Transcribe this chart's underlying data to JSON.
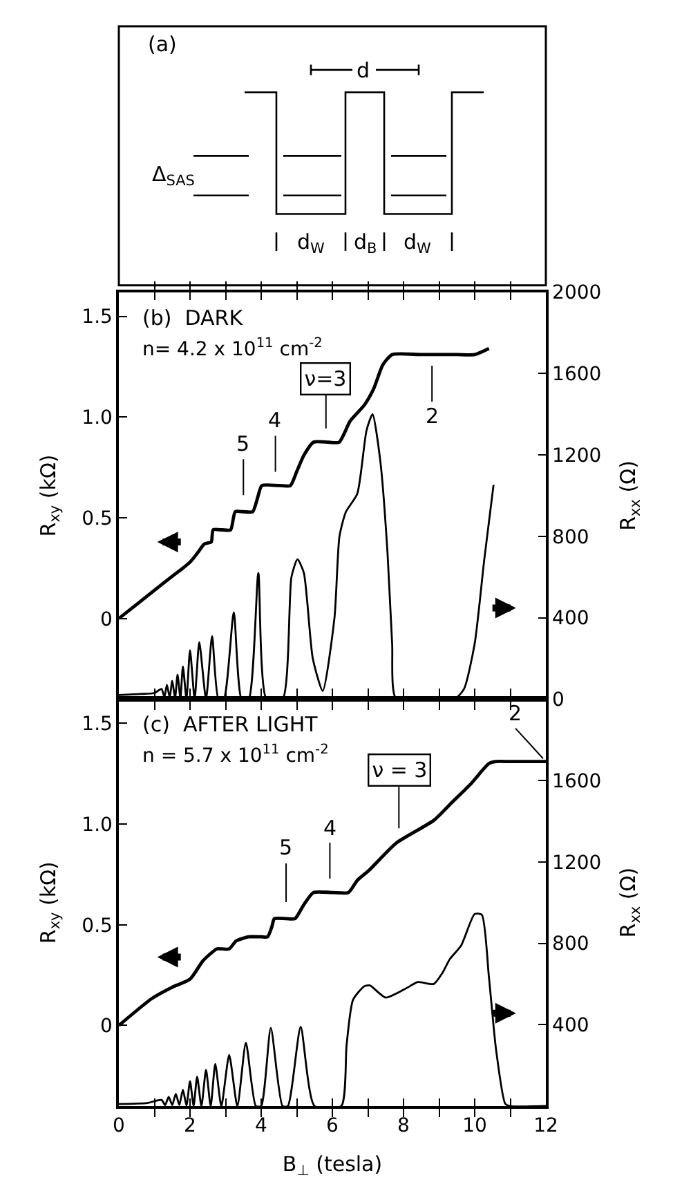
{
  "chart_data": [
    {
      "type": "other",
      "annotations": [
        "(a)",
        "d",
        "Δ$_{SAS}$",
        "d$_{W}$",
        "d$_{B}$",
        "d$_{W}$"
      ]
    },
    {
      "type": "line",
      "ylabel": "R$_{xy}$ (kΩ)",
      "y2label": "R$_{xx}$ (Ω)",
      "tick_labels": "y",
      "annotations": [
        "(b)  DARK",
        "n= 4.2 x 10$^{11}$ cm$^{-2}$",
        {
          "text": "5",
          "x": 3.5,
          "y": 0.53
        },
        {
          "text": "4",
          "x": 4.4,
          "y": 0.66
        },
        {
          "text": "ν=3",
          "x": 5.82,
          "y": 0.875
        },
        {
          "text": "2",
          "x": 8.8,
          "y": 1.31
        }
      ],
      "xlim": [
        0,
        12
      ],
      "xticks": [
        0,
        {
          "value": 1,
          "label": null
        },
        {
          "value": 2,
          "label": null
        },
        {
          "value": 3,
          "label": null
        },
        {
          "value": 4,
          "label": null
        },
        {
          "value": 5,
          "label": null
        },
        {
          "value": 6,
          "label": null
        },
        {
          "value": 7,
          "label": null
        },
        {
          "value": 8,
          "label": null
        },
        {
          "value": 9,
          "label": null
        },
        {
          "value": 10,
          "label": null
        },
        {
          "value": 11,
          "label": null
        },
        {
          "value": 12,
          "label": null
        }
      ],
      "ylim": [
        -0.4,
        1.62
      ],
      "yticks": [
        0,
        0.5,
        {
          "value": 1.0,
          "label": "1.0"
        },
        1.5
      ],
      "y2lim": [
        0,
        2000
      ],
      "y2ticks": [
        0,
        400,
        800,
        1200,
        1600,
        2000
      ],
      "series": [
        {
          "color": "#000000",
          "x": [
            0,
            0.5,
            1.0,
            1.5,
            1.8,
            2.0,
            2.1,
            2.23,
            2.4,
            2.5,
            2.6,
            2.65,
            2.9,
            3.14,
            3.27,
            3.5,
            3.76,
            3.9,
            4.02,
            4.5,
            4.82,
            5.0,
            5.2,
            5.47,
            5.9,
            6.19,
            6.5,
            6.9,
            7.16,
            7.42,
            7.68,
            8.5,
            9.5,
            10.0,
            10.4
          ],
          "values": [
            0,
            0.07,
            0.14,
            0.21,
            0.25,
            0.28,
            0.3,
            0.33,
            0.37,
            0.375,
            0.38,
            0.44,
            0.44,
            0.44,
            0.53,
            0.53,
            0.53,
            0.6,
            0.66,
            0.66,
            0.66,
            0.73,
            0.81,
            0.875,
            0.875,
            0.875,
            0.98,
            1.06,
            1.14,
            1.26,
            1.31,
            1.31,
            1.31,
            1.31,
            1.34
          ]
        },
        {
          "color": "#000000",
          "axis": "y2",
          "x": [
            0,
            0.6,
            1.0,
            1.2,
            1.28,
            1.35,
            1.43,
            1.5,
            1.58,
            1.65,
            1.73,
            1.8,
            1.9,
            2.0,
            2.13,
            2.26,
            2.45,
            2.62,
            2.8,
            2.95,
            3.23,
            3.45,
            3.65,
            3.92,
            4.15,
            4.6,
            4.85,
            5.02,
            5.2,
            5.45,
            5.73,
            6.06,
            6.2,
            6.38,
            6.7,
            6.96,
            7.13,
            7.35,
            7.55,
            7.68,
            7.8,
            9.43,
            9.7,
            10.0,
            10.27,
            10.53
          ],
          "values": [
            20,
            25,
            30,
            50,
            10,
            70,
            8,
            90,
            6,
            120,
            5,
            160,
            3,
            240,
            2,
            280,
            0,
            310,
            0,
            0,
            427,
            0,
            0,
            620,
            0,
            0,
            600,
            687,
            620,
            200,
            40,
            400,
            800,
            920,
            1009,
            1320,
            1400,
            1167,
            720,
            273,
            0,
            0,
            50,
            273,
            687,
            1053
          ]
        }
      ]
    },
    {
      "type": "line",
      "xlabel": "B$_{⊥}$ (tesla)",
      "ylabel": "R$_{xy}$ (kΩ)",
      "y2label": "R$_{xx}$ (Ω)",
      "annotations": [
        "(c)  AFTER LIGHT",
        "n = 5.7 x 10$^{11}$ cm$^{-2}$",
        {
          "text": "5",
          "x": 4.7,
          "y": 0.53
        },
        {
          "text": "4",
          "x": 5.93,
          "y": 0.66
        },
        {
          "text": "ν = 3",
          "x": 7.87,
          "y": 0.91
        },
        {
          "text": "2",
          "x": 12.0,
          "y": 1.31
        }
      ],
      "xlim": [
        0,
        12
      ],
      "xticks": [
        0,
        {
          "value": 1,
          "label": null
        },
        2,
        {
          "value": 3,
          "label": null
        },
        4,
        {
          "value": 5,
          "label": null
        },
        6,
        {
          "value": 7,
          "label": null
        },
        8,
        {
          "value": 9,
          "label": null
        },
        10,
        {
          "value": 11,
          "label": null
        },
        12
      ],
      "ylim": [
        -0.4,
        1.62
      ],
      "yticks": [
        0,
        0.5,
        {
          "value": 1.0,
          "label": "1.0"
        },
        1.5
      ],
      "y2lim": [
        0,
        2000
      ],
      "y2ticks": [
        {
          "value": 0,
          "label": null
        },
        400,
        800,
        1200,
        1600,
        {
          "value": 2000,
          "label": null
        }
      ],
      "series": [
        {
          "color": "#000000",
          "x": [
            0,
            0.93,
            1.5,
            2.0,
            2.36,
            2.6,
            2.75,
            2.9,
            3.1,
            3.3,
            3.66,
            4.0,
            4.18,
            4.3,
            4.37,
            4.7,
            4.95,
            5.2,
            5.47,
            6.0,
            6.45,
            6.7,
            7.03,
            7.8,
            8.85,
            9.36,
            9.88,
            10.4,
            10.6,
            11.0,
            12.0
          ],
          "values": [
            0,
            0.134,
            0.19,
            0.23,
            0.32,
            0.36,
            0.38,
            0.38,
            0.38,
            0.42,
            0.44,
            0.44,
            0.44,
            0.49,
            0.53,
            0.53,
            0.53,
            0.6,
            0.66,
            0.66,
            0.66,
            0.72,
            0.77,
            0.906,
            1.018,
            1.107,
            1.197,
            1.3,
            1.31,
            1.31,
            1.31
          ]
        },
        {
          "color": "#000000",
          "axis": "y2",
          "x": [
            0,
            0.8,
            1.2,
            1.3,
            1.4,
            1.5,
            1.6,
            1.7,
            1.8,
            1.9,
            2.0,
            2.1,
            2.2,
            2.32,
            2.45,
            2.58,
            2.71,
            2.88,
            3.1,
            3.33,
            3.57,
            3.85,
            4.0,
            4.27,
            4.6,
            4.75,
            5.11,
            5.5,
            6.25,
            6.4,
            6.58,
            6.9,
            7.05,
            7.5,
            8.07,
            8.4,
            8.85,
            9.1,
            9.3,
            9.62,
            10.0,
            10.2,
            10.4,
            10.6,
            10.86,
            11.0,
            12.0
          ],
          "values": [
            10,
            15,
            30,
            5,
            45,
            5,
            60,
            5,
            80,
            3,
            122,
            2,
            144,
            0,
            178,
            0,
            207,
            0,
            251,
            0,
            311,
            0,
            0,
            384,
            0,
            0,
            389,
            0,
            0,
            300,
            522,
            589,
            593,
            533,
            578,
            609,
            600,
            656,
            722,
            789,
            944,
            940,
            633,
            278,
            11,
            0,
            0
          ]
        }
      ]
    }
  ]
}
